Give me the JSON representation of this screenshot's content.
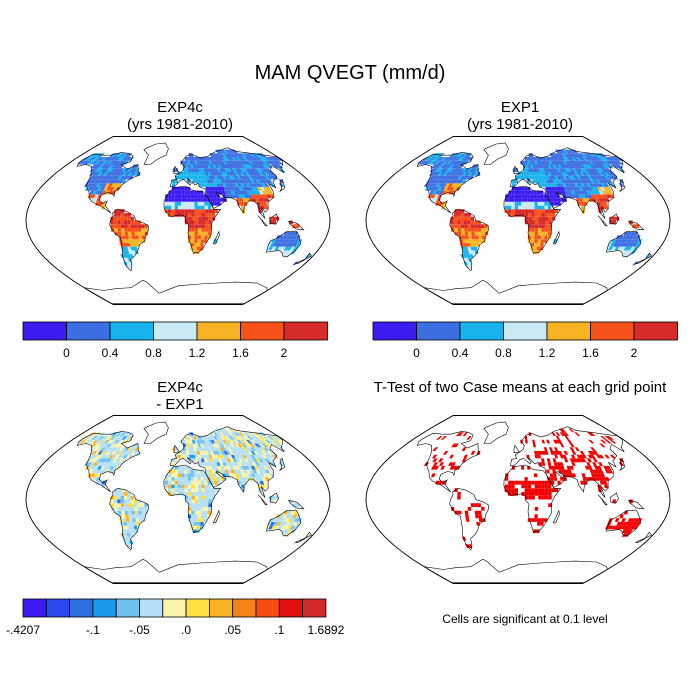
{
  "figure": {
    "title": "MAM QVEGT (mm/d)"
  },
  "panels": [
    {
      "title_line1": "EXP4c",
      "title_line2": "(yrs 1981-2010)"
    },
    {
      "title_line1": "EXP1",
      "title_line2": "(yrs 1981-2010)"
    },
    {
      "title_line1": "EXP4c",
      "title_line2": "- EXP1"
    },
    {
      "title_line1": "T-Test of two Case means at each grid point",
      "title_line2": ""
    }
  ],
  "significance_note": "Cells are significant at 0.1 level",
  "colorbars": {
    "absolute": {
      "colors": [
        "#3a1cf0",
        "#3d6fe3",
        "#17b3ef",
        "#c9eaf5",
        "#f8b324",
        "#f7521a",
        "#d72a2a"
      ],
      "tick_labels": [
        "0",
        "0.4",
        "0.8",
        "1.2",
        "1.6",
        "2"
      ]
    },
    "difference": {
      "colors": [
        "#3a1cf0",
        "#2a48f0",
        "#2f6fe0",
        "#1a9ae8",
        "#6fc2f0",
        "#b5dff5",
        "#f9f4a8",
        "#fde046",
        "#fbb324",
        "#f7821a",
        "#f74d10",
        "#e01010",
        "#d02a2a"
      ],
      "tick_labels": [
        "-.4207",
        "-.1",
        "-.05",
        ".0",
        ".05",
        ".1",
        "1.6892"
      ]
    }
  },
  "chart_data": [
    {
      "type": "heatmap",
      "title": "EXP4c (yrs 1981-2010)",
      "variable": "MAM QVEGT (mm/d)",
      "colorbar_ticks": [
        0,
        0.4,
        0.8,
        1.2,
        1.6,
        2
      ],
      "regions": {
        "amazon": 2.0,
        "congo": 2.0,
        "se_asia": 2.0,
        "se_usa": 1.6,
        "boreal": 0.2,
        "sahara": 0.0
      }
    },
    {
      "type": "heatmap",
      "title": "EXP1 (yrs 1981-2010)",
      "variable": "MAM QVEGT (mm/d)",
      "colorbar_ticks": [
        0,
        0.4,
        0.8,
        1.2,
        1.6,
        2
      ],
      "regions": {
        "amazon": 2.0,
        "congo": 2.0,
        "se_asia": 2.0,
        "se_usa": 1.6,
        "boreal": 0.2,
        "sahara": 0.0
      }
    },
    {
      "type": "heatmap",
      "title": "EXP4c - EXP1",
      "colorbar_ticks": [
        -0.4207,
        -0.1,
        -0.05,
        0.0,
        0.05,
        0.1,
        1.6892
      ],
      "range": [
        -0.4207,
        1.6892
      ]
    },
    {
      "type": "heatmap",
      "title": "T-Test of two Case means at each grid point",
      "significance_level": 0.1
    }
  ]
}
